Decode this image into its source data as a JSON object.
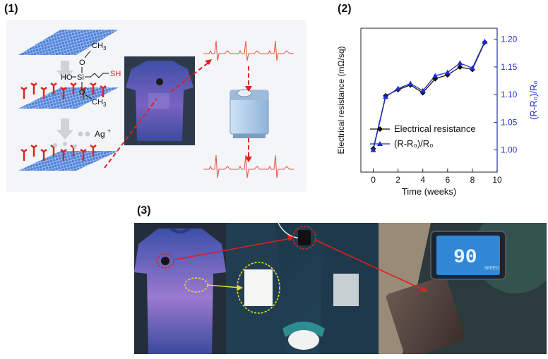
{
  "panels": {
    "p1_label": "(1)",
    "p2_label": "(2)",
    "p3_label": "(3)"
  },
  "molecule": {
    "ch3_top": "CH",
    "sub3_top": "3",
    "o_top": "O",
    "ho": "HO",
    "si": "Si",
    "sh": "SH",
    "o_bottom": "O",
    "ch3_bottom": "CH",
    "sub3_bottom": "3",
    "ag": "Ag",
    "ag_sup": "+"
  },
  "colors": {
    "black_series": "#111111",
    "blue_series": "#1f2bd6",
    "red_arrow": "#e0201c",
    "ecg": "#e85a4a",
    "yellow_marker": "#e8e020"
  },
  "chart_data": {
    "type": "line",
    "x": [
      0,
      1,
      2,
      3,
      4,
      5,
      6,
      7,
      8,
      9
    ],
    "xlabel": "Time (weeks)",
    "xlim": [
      -1,
      10
    ],
    "xticks": [
      "0",
      "2",
      "4",
      "6",
      "8",
      "10"
    ],
    "ylabel_left": "Electrical resistance (mΩ/sq)",
    "ylabel_right": "(R-R₀)/R₀",
    "ylim_right": [
      0.96,
      1.22
    ],
    "yticks_right": [
      "1.00",
      "1.05",
      "1.10",
      "1.15",
      "1.20"
    ],
    "series": [
      {
        "name": "Electrical resistance",
        "axis": "left",
        "marker": "diamond",
        "values": [
          7.2,
          7.88,
          7.96,
          8.02,
          7.92,
          8.1,
          8.15,
          8.25,
          8.22,
          8.57
        ]
      },
      {
        "name": "(R-R₀)/R₀",
        "axis": "right",
        "marker": "triangle",
        "values": [
          1.0,
          1.096,
          1.111,
          1.12,
          1.107,
          1.134,
          1.14,
          1.157,
          1.148,
          1.196
        ]
      }
    ],
    "legend": [
      "Electrical resistance",
      "(R-R₀)/R₀"
    ],
    "legend_position": "bottom-right"
  },
  "speedometer": {
    "value": "90",
    "label": "SPEED"
  }
}
